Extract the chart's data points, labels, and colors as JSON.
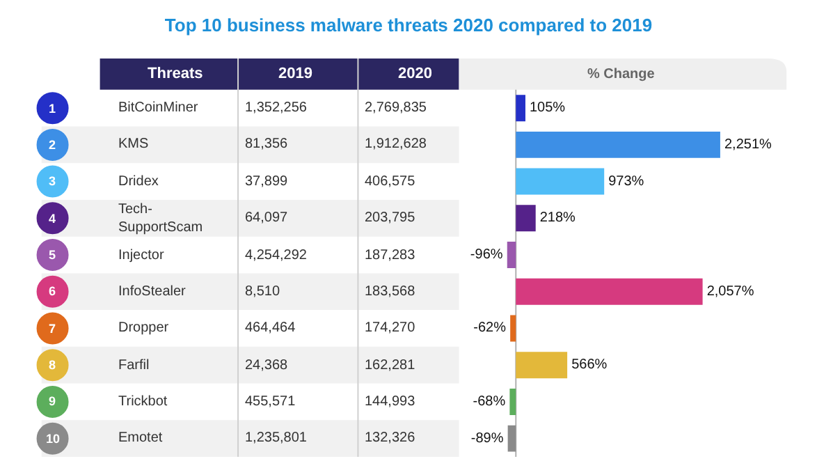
{
  "chart_data": [
    {
      "type": "other",
      "title": "Top 10 business malware threats 2020 compared to 2019",
      "annotations": [
        "Threats",
        "2019",
        "2020",
        "BitCoinMiner",
        "1,352,256",
        "2,769,835",
        "KMS",
        "81,356",
        "1,912,628",
        "Dridex",
        "37,899",
        "406,575",
        "Tech-\nSupportScam",
        "64,097",
        "203,795",
        "Injector",
        "4,254,292",
        "187,283",
        "InfoStealer",
        "8,510",
        "183,568",
        "Dropper",
        "464,464",
        "174,270",
        "Farfil",
        "24,368",
        "162,281",
        "Trickbot",
        "455,571",
        "144,993",
        "Emotet",
        "1,235,801",
        "132,326"
      ]
    },
    {
      "type": "bar",
      "orientation": "horizontal",
      "xlabel": "% Change",
      "tick_labels": "y",
      "grid": false,
      "categories": [
        "1",
        "2",
        "3",
        "4",
        "5",
        "6",
        "7",
        "8",
        "9",
        "10"
      ],
      "values": [
        105,
        2251,
        973,
        218,
        -96,
        2057,
        -62,
        566,
        -68,
        -89
      ],
      "value_labels": [
        "105%",
        "2,251%",
        "973%",
        "218%",
        "-96%",
        "2,057%",
        "-62%",
        "566%",
        "-68%",
        "-89%"
      ],
      "colors": [
        "#2430c8",
        "#3d8fe6",
        "#50bdf7",
        "#55228a",
        "#9a58ad",
        "#d63a7f",
        "#e06a1c",
        "#e3b83a",
        "#5cae5c",
        "#8a8a8a"
      ]
    }
  ]
}
